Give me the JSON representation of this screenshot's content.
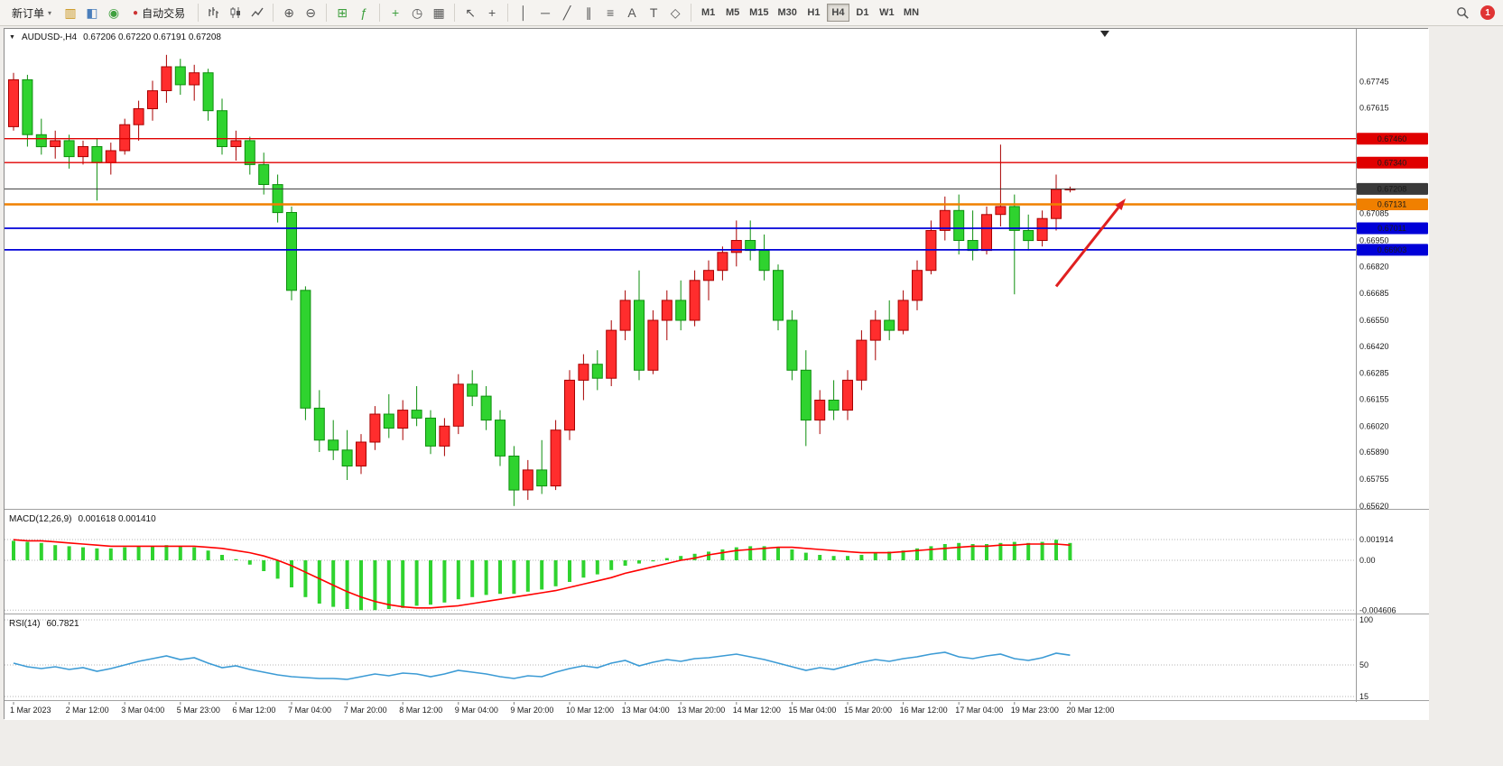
{
  "toolbar": {
    "new_order_label": "新订单",
    "auto_trading_label": "自动交易",
    "timeframes": [
      "M1",
      "M5",
      "M15",
      "M30",
      "H1",
      "H4",
      "D1",
      "W1",
      "MN"
    ],
    "active_timeframe": "H4",
    "notification_count": "1"
  },
  "icons": {
    "dropdown_arrow": "▾",
    "collapse": "▼",
    "accounts": "▥",
    "market_watch": "◧",
    "community": "◉",
    "auto_trading_dot": "●",
    "zoom_in": "⊕",
    "zoom_out": "⊖",
    "tile_windows": "⊞",
    "indicators": "ƒ",
    "new_chart": "+",
    "periods": "◷",
    "templates": "▦",
    "cursor": "↖",
    "crosshair": "+",
    "vline": "│",
    "hline": "─",
    "trendline": "╱",
    "channel": "∥",
    "fibonacci": "≡",
    "text_tool": "A",
    "label_tool": "T",
    "shapes": "◇"
  },
  "chart_data": {
    "type": "candlestick",
    "symbol": "AUDUSD-",
    "period": "H4",
    "title_text": "AUDUSD-,H4",
    "ohlc_text": "0.67206 0.67220 0.67191 0.67208",
    "current_ohlc": {
      "open": 0.67206,
      "high": 0.6722,
      "low": 0.67191,
      "close": 0.67208
    },
    "candles": [
      [
        0.6752,
        0.6779,
        0.675,
        0.67755
      ],
      [
        0.67755,
        0.6778,
        0.6742,
        0.6748
      ],
      [
        0.6748,
        0.6756,
        0.6738,
        0.6742
      ],
      [
        0.6742,
        0.675,
        0.6736,
        0.6745
      ],
      [
        0.6745,
        0.6748,
        0.6731,
        0.6737
      ],
      [
        0.6737,
        0.6745,
        0.6733,
        0.6742
      ],
      [
        0.6742,
        0.6746,
        0.6715,
        0.6734
      ],
      [
        0.6734,
        0.6744,
        0.6728,
        0.674
      ],
      [
        0.674,
        0.6756,
        0.6738,
        0.6753
      ],
      [
        0.6753,
        0.6765,
        0.6745,
        0.6761
      ],
      [
        0.6761,
        0.6775,
        0.6755,
        0.677
      ],
      [
        0.677,
        0.6788,
        0.6764,
        0.6782
      ],
      [
        0.6782,
        0.6786,
        0.6768,
        0.6773
      ],
      [
        0.6773,
        0.6783,
        0.6765,
        0.6779
      ],
      [
        0.6779,
        0.6781,
        0.6755,
        0.676
      ],
      [
        0.676,
        0.6766,
        0.6738,
        0.6742
      ],
      [
        0.6742,
        0.675,
        0.6735,
        0.6745
      ],
      [
        0.6745,
        0.6747,
        0.6728,
        0.6733
      ],
      [
        0.6733,
        0.6739,
        0.6718,
        0.6723
      ],
      [
        0.6723,
        0.6728,
        0.6704,
        0.6709
      ],
      [
        0.6709,
        0.6712,
        0.6665,
        0.667
      ],
      [
        0.667,
        0.6672,
        0.6605,
        0.6611
      ],
      [
        0.6611,
        0.662,
        0.6589,
        0.6595
      ],
      [
        0.6595,
        0.6605,
        0.6585,
        0.659
      ],
      [
        0.659,
        0.66,
        0.6575,
        0.6582
      ],
      [
        0.6582,
        0.6598,
        0.6578,
        0.6594
      ],
      [
        0.6594,
        0.6612,
        0.659,
        0.6608
      ],
      [
        0.6608,
        0.6618,
        0.6596,
        0.6601
      ],
      [
        0.6601,
        0.6615,
        0.6595,
        0.661
      ],
      [
        0.661,
        0.6622,
        0.6602,
        0.6606
      ],
      [
        0.6606,
        0.661,
        0.6588,
        0.6592
      ],
      [
        0.6592,
        0.6606,
        0.6587,
        0.6602
      ],
      [
        0.6602,
        0.6628,
        0.6598,
        0.6623
      ],
      [
        0.6623,
        0.663,
        0.6612,
        0.6617
      ],
      [
        0.6617,
        0.6622,
        0.66,
        0.6605
      ],
      [
        0.6605,
        0.661,
        0.6582,
        0.6587
      ],
      [
        0.6587,
        0.6592,
        0.6562,
        0.657
      ],
      [
        0.657,
        0.6585,
        0.6565,
        0.658
      ],
      [
        0.658,
        0.6595,
        0.6568,
        0.6572
      ],
      [
        0.6572,
        0.6605,
        0.657,
        0.66
      ],
      [
        0.66,
        0.663,
        0.6595,
        0.6625
      ],
      [
        0.6625,
        0.6638,
        0.6615,
        0.6633
      ],
      [
        0.6633,
        0.664,
        0.662,
        0.6626
      ],
      [
        0.6626,
        0.6655,
        0.6622,
        0.665
      ],
      [
        0.665,
        0.667,
        0.6645,
        0.6665
      ],
      [
        0.6665,
        0.668,
        0.6625,
        0.663
      ],
      [
        0.663,
        0.666,
        0.6628,
        0.6655
      ],
      [
        0.6655,
        0.667,
        0.6645,
        0.6665
      ],
      [
        0.6665,
        0.6675,
        0.665,
        0.6655
      ],
      [
        0.6655,
        0.668,
        0.6652,
        0.6675
      ],
      [
        0.6675,
        0.6685,
        0.6665,
        0.668
      ],
      [
        0.668,
        0.6692,
        0.6675,
        0.6689
      ],
      [
        0.6689,
        0.6705,
        0.6682,
        0.6695
      ],
      [
        0.6695,
        0.6705,
        0.6685,
        0.669
      ],
      [
        0.669,
        0.6698,
        0.6675,
        0.668
      ],
      [
        0.668,
        0.6683,
        0.665,
        0.6655
      ],
      [
        0.6655,
        0.666,
        0.6625,
        0.663
      ],
      [
        0.663,
        0.664,
        0.6592,
        0.6605
      ],
      [
        0.6605,
        0.662,
        0.6598,
        0.6615
      ],
      [
        0.6615,
        0.6625,
        0.6605,
        0.661
      ],
      [
        0.661,
        0.663,
        0.6605,
        0.6625
      ],
      [
        0.6625,
        0.665,
        0.662,
        0.6645
      ],
      [
        0.6645,
        0.666,
        0.6635,
        0.6655
      ],
      [
        0.6655,
        0.6665,
        0.6645,
        0.665
      ],
      [
        0.665,
        0.667,
        0.6648,
        0.6665
      ],
      [
        0.6665,
        0.6685,
        0.666,
        0.668
      ],
      [
        0.668,
        0.6705,
        0.6678,
        0.67
      ],
      [
        0.67,
        0.6717,
        0.6695,
        0.671
      ],
      [
        0.671,
        0.6718,
        0.6688,
        0.6695
      ],
      [
        0.6695,
        0.671,
        0.6685,
        0.669
      ],
      [
        0.669,
        0.6712,
        0.6688,
        0.6708
      ],
      [
        0.6708,
        0.6743,
        0.6702,
        0.6712
      ],
      [
        0.6712,
        0.6718,
        0.6668,
        0.67
      ],
      [
        0.67,
        0.6708,
        0.669,
        0.6695
      ],
      [
        0.6695,
        0.671,
        0.6692,
        0.6706
      ],
      [
        0.6706,
        0.6728,
        0.67,
        0.67206
      ],
      [
        0.67206,
        0.6722,
        0.67191,
        0.67208
      ]
    ],
    "time_labels": [
      {
        "index": 0,
        "text": "1 Mar 2023"
      },
      {
        "index": 4,
        "text": "2 Mar 12:00"
      },
      {
        "index": 8,
        "text": "3 Mar 04:00"
      },
      {
        "index": 12,
        "text": "5 Mar 23:00"
      },
      {
        "index": 16,
        "text": "6 Mar 12:00"
      },
      {
        "index": 20,
        "text": "7 Mar 04:00"
      },
      {
        "index": 24,
        "text": "7 Mar 20:00"
      },
      {
        "index": 28,
        "text": "8 Mar 12:00"
      },
      {
        "index": 32,
        "text": "9 Mar 04:00"
      },
      {
        "index": 36,
        "text": "9 Mar 20:00"
      },
      {
        "index": 40,
        "text": "10 Mar 12:00"
      },
      {
        "index": 44,
        "text": "13 Mar 04:00"
      },
      {
        "index": 48,
        "text": "13 Mar 20:00"
      },
      {
        "index": 52,
        "text": "14 Mar 12:00"
      },
      {
        "index": 56,
        "text": "15 Mar 04:00"
      },
      {
        "index": 60,
        "text": "15 Mar 20:00"
      },
      {
        "index": 64,
        "text": "16 Mar 12:00"
      },
      {
        "index": 68,
        "text": "17 Mar 04:00"
      },
      {
        "index": 72,
        "text": "19 Mar 23:00"
      },
      {
        "index": 76,
        "text": "20 Mar 12:00"
      }
    ],
    "price_axis_labels": [
      0.67745,
      0.67615,
      0.67085,
      0.6695,
      0.6682,
      0.66685,
      0.6655,
      0.6642,
      0.66285,
      0.66155,
      0.6602,
      0.6589,
      0.65755,
      0.6562
    ],
    "price_levels": [
      {
        "price": 0.6746,
        "label": "0.67460",
        "color": "#E00000",
        "width": 1.4,
        "name": "resistance-line-1"
      },
      {
        "price": 0.6734,
        "label": "0.67340",
        "color": "#E00000",
        "width": 1.4,
        "name": "resistance-line-2"
      },
      {
        "price": 0.67208,
        "label": "0.67208",
        "color": "#3A3A3A",
        "width": 1.0,
        "name": "current-price-line"
      },
      {
        "price": 0.67131,
        "label": "0.67131",
        "color": "#F08000",
        "width": 2.4,
        "name": "pivot-line"
      },
      {
        "price": 0.67011,
        "label": "0.67011",
        "color": "#0000D8",
        "width": 1.8,
        "name": "support-line-1"
      },
      {
        "price": 0.66903,
        "label": "0.66903",
        "color": "#0000D8",
        "width": 1.8,
        "name": "support-line-2"
      }
    ],
    "colors": {
      "bull_fill": "#FF2D2D",
      "bull_stroke": "#A80000",
      "bear_fill": "#2FD32F",
      "bear_stroke": "#0E8F0E",
      "macd_bar": "#2FD32F",
      "macd_signal": "#FF0000",
      "rsi_line": "#3C9BD5",
      "arrow": "#E02020"
    },
    "arrow": {
      "from": {
        "index": 75,
        "price": 0.6672
      },
      "to": {
        "index": 80,
        "price": 0.6716
      }
    },
    "shift_marker_index": 78.5,
    "macd": {
      "label": "MACD(12,26,9)",
      "values_text": "0.001618 0.001410",
      "axis_labels": [
        {
          "value": 0.001914,
          "text": "0.001914"
        },
        {
          "value": 0,
          "text": "0.00"
        },
        {
          "value": -0.004606,
          "text": "-0.004606"
        }
      ],
      "histogram": [
        0.0018,
        0.0017,
        0.0016,
        0.0014,
        0.0013,
        0.0012,
        0.0011,
        0.0011,
        0.0012,
        0.0013,
        0.0013,
        0.0014,
        0.0013,
        0.0012,
        0.0009,
        0.0005,
        0.0001,
        -0.0004,
        -0.001,
        -0.0017,
        -0.0025,
        -0.0034,
        -0.004,
        -0.0043,
        -0.0045,
        -0.0046,
        -0.0046,
        -0.0045,
        -0.0044,
        -0.0042,
        -0.0041,
        -0.0039,
        -0.0036,
        -0.0034,
        -0.0032,
        -0.0031,
        -0.0031,
        -0.0029,
        -0.0027,
        -0.0024,
        -0.002,
        -0.0016,
        -0.0013,
        -0.0009,
        -0.0005,
        -0.0003,
        -0.0001,
        0.0002,
        0.0004,
        0.0006,
        0.0008,
        0.001,
        0.0012,
        0.0013,
        0.0013,
        0.0012,
        0.001,
        0.0007,
        0.0005,
        0.0004,
        0.0004,
        0.0005,
        0.0007,
        0.0008,
        0.0009,
        0.0011,
        0.0013,
        0.0015,
        0.0016,
        0.0015,
        0.0015,
        0.0016,
        0.0017,
        0.0016,
        0.0017,
        0.0019,
        0.0016
      ],
      "signal": [
        0.0019,
        0.0018,
        0.0018,
        0.0017,
        0.0016,
        0.0015,
        0.0014,
        0.0013,
        0.0013,
        0.0013,
        0.0013,
        0.0013,
        0.0013,
        0.0013,
        0.0012,
        0.0011,
        0.0009,
        0.0007,
        0.0004,
        0.0,
        -0.0005,
        -0.0011,
        -0.0017,
        -0.0023,
        -0.0029,
        -0.0034,
        -0.0038,
        -0.0041,
        -0.0043,
        -0.0044,
        -0.0044,
        -0.0043,
        -0.0042,
        -0.004,
        -0.0038,
        -0.0036,
        -0.0034,
        -0.0032,
        -0.003,
        -0.0028,
        -0.0025,
        -0.0022,
        -0.0019,
        -0.0016,
        -0.0012,
        -0.0009,
        -0.0006,
        -0.0003,
        0.0,
        0.0002,
        0.0005,
        0.0007,
        0.0009,
        0.001,
        0.0011,
        0.0012,
        0.0012,
        0.0011,
        0.001,
        0.0009,
        0.0008,
        0.0007,
        0.0007,
        0.0007,
        0.0008,
        0.0009,
        0.001,
        0.0011,
        0.0012,
        0.0013,
        0.0013,
        0.0014,
        0.0014,
        0.0015,
        0.0015,
        0.0015,
        0.0014
      ]
    },
    "rsi": {
      "label": "RSI(14)",
      "value_text": "60.7821",
      "levels": [
        {
          "value": 100,
          "text": "100"
        },
        {
          "value": 50,
          "text": "50"
        },
        {
          "value": 15,
          "text": "15"
        }
      ],
      "values": [
        52,
        48,
        46,
        48,
        45,
        47,
        43,
        46,
        50,
        54,
        57,
        60,
        56,
        58,
        52,
        47,
        49,
        45,
        42,
        39,
        37,
        36,
        35,
        35,
        34,
        37,
        40,
        38,
        41,
        40,
        37,
        40,
        44,
        42,
        40,
        37,
        35,
        38,
        37,
        42,
        46,
        49,
        47,
        52,
        55,
        49,
        53,
        56,
        54,
        57,
        58,
        60,
        62,
        59,
        56,
        52,
        48,
        44,
        47,
        45,
        49,
        53,
        56,
        54,
        57,
        59,
        62,
        64,
        59,
        57,
        60,
        62,
        57,
        55,
        58,
        63,
        60.78
      ]
    }
  }
}
